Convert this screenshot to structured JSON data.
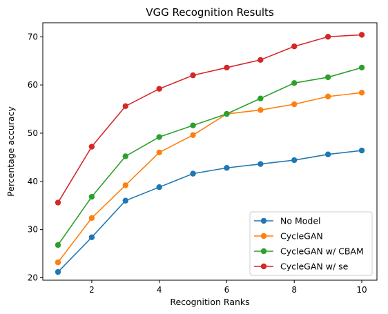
{
  "chart_data": {
    "type": "line",
    "title": "VGG Recognition Results",
    "xlabel": "Recognition Ranks",
    "ylabel": "Percentage accuracy",
    "x": [
      1,
      2,
      3,
      4,
      5,
      6,
      7,
      8,
      9,
      10
    ],
    "xlim": [
      0.55,
      10.45
    ],
    "ylim": [
      19.5,
      72.9
    ],
    "xticks": [
      2,
      4,
      6,
      8,
      10
    ],
    "yticks": [
      20,
      30,
      40,
      50,
      60,
      70
    ],
    "xtick_labels": [
      "2",
      "4",
      "6",
      "8",
      "10"
    ],
    "ytick_labels": [
      "20",
      "30",
      "40",
      "50",
      "60",
      "70"
    ],
    "grid": false,
    "legend_position": "lower-right",
    "series": [
      {
        "name": "No Model",
        "color": "#1f77b4",
        "values": [
          21.2,
          28.4,
          36.0,
          38.8,
          41.6,
          42.8,
          43.6,
          44.4,
          45.6,
          46.4
        ]
      },
      {
        "name": "CycleGAN",
        "color": "#ff7f0e",
        "values": [
          23.2,
          32.4,
          39.2,
          46.0,
          49.6,
          54.0,
          54.8,
          56.0,
          57.6,
          58.4
        ]
      },
      {
        "name": "CycleGAN w/ CBAM",
        "color": "#2ca02c",
        "values": [
          26.8,
          36.8,
          45.2,
          49.2,
          51.6,
          54.0,
          57.2,
          60.4,
          61.6,
          63.6
        ]
      },
      {
        "name": "CycleGAN w/ se",
        "color": "#d62728",
        "values": [
          35.6,
          47.2,
          55.6,
          59.2,
          62.0,
          63.6,
          65.2,
          68.0,
          70.0,
          70.4
        ]
      }
    ]
  }
}
